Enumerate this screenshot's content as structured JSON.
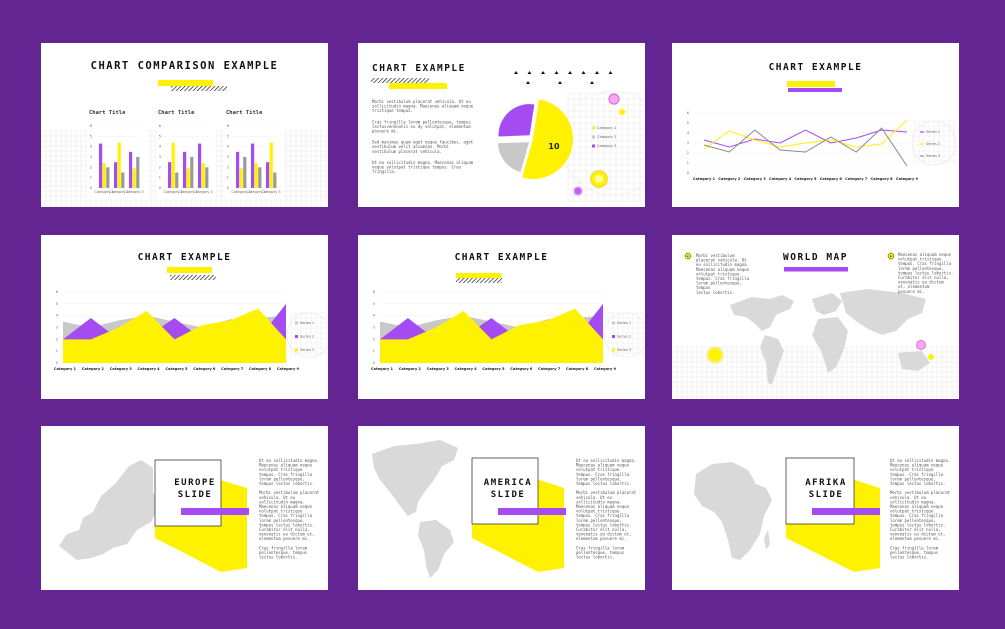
{
  "colors": {
    "background": "#632592",
    "yellow": "#FFF200",
    "purple": "#A44BF2",
    "gray": "#C8C8C8",
    "dark": "#1A1A1A"
  },
  "slides": {
    "s1": {
      "title": "CHART COMPARISON EXAMPLE",
      "chart_title": "Chart Title"
    },
    "s2": {
      "title": "CHART EXAMPLE",
      "para1": [
        "Morbi vestibulum placerat vehicula. Ut eu",
        "sollicitudin magna. Maecenas aliquam neque",
        "tristique tempus."
      ],
      "para2": [
        "Cras fringilla lorem pellentesque, tempus",
        "lectusvenenatis eu dy volutpat, elementum",
        "posuere mi."
      ],
      "para3": [
        "Sed maximus quam eget neque faucibus, eget",
        "vestibulum velit accumsan. Morbi",
        "vestibulum placerat vehicula."
      ],
      "para4": [
        "Ut eu sollicitudin magna. Maecenas aliquam",
        "neque volutpat tristique tempus. Cras",
        "fringilla."
      ],
      "pie_label": "10"
    },
    "s3": {
      "title": "CHART EXAMPLE"
    },
    "s4": {
      "title": "CHART EXAMPLE"
    },
    "s5": {
      "title": "CHART EXAMPLE"
    },
    "s6": {
      "title": "WORLD MAP",
      "left": [
        "Morbi vestibulum",
        "placerat vehicula. Ut",
        "eu sollicitudin magna.",
        "Maecenas aliquam neque",
        "volutpat tristique",
        "tempus. Cras fringilla",
        "lorem pellentesque,",
        "tempus",
        "lectus lobortis."
      ],
      "right": [
        "Maecenas aliquam neque",
        "volutpat tristique",
        "tempus. Cras fringilla",
        "lorem pellentesque,",
        "tempus lectus lobortis.",
        "Curabitur elit nulla,",
        "venenatis eu dictum",
        "ut, elementum",
        "posuere mi."
      ]
    },
    "s7": {
      "title_line1": "EUROPE",
      "title_line2": "SLIDE"
    },
    "s8": {
      "title_line1": "AMERICA",
      "title_line2": "SLIDE"
    },
    "s9": {
      "title_line1": "AFRIKA",
      "title_line2": "SLIDE"
    },
    "side_text": [
      "Ut eu sollicitudin magna.",
      "Maecenas aliquam neque",
      "volutpat tristique",
      "tempus. Cras fringilla",
      "lorem pellentesque,",
      "tempus lectus lobortis.",
      "",
      "Morbi vestibulum placerat",
      "vehicula. Ut eu",
      "sollicitudin magna.",
      "Maecenas aliquam neque",
      "volutpat tristique",
      "tempus. Cras fringilla",
      "lorem pellentesque,",
      "tempus lectus lobortis.",
      "Curabitur elit nulla,",
      "venenatis eu dictum ut,",
      "elementum posuere mi.",
      "",
      "Cras fringilla lorem",
      "pellentesque, tempus",
      "lectus lobortis."
    ]
  },
  "chart_data": [
    {
      "type": "bar",
      "title": "Chart Title",
      "categories": [
        "Category 1",
        "Category 2",
        "Category 3"
      ],
      "yticks": [
        "0",
        "1",
        "2",
        "3",
        "4",
        "5",
        "6"
      ],
      "series": [
        {
          "values": [
            4.3,
            2.5,
            3.5
          ]
        },
        {
          "values": [
            2.4,
            4.4,
            1.9
          ]
        },
        {
          "values": [
            2.0,
            1.5,
            3.0
          ]
        }
      ]
    },
    {
      "type": "pie",
      "label": "10",
      "values": [
        52,
        20,
        28
      ],
      "legend": [
        "Category 1",
        "Category 2",
        "Category 3"
      ]
    },
    {
      "type": "line",
      "categories": [
        "Category 1",
        "Category 2",
        "Category 3",
        "Category 4",
        "Category 5",
        "Category 6",
        "Category 7",
        "Category 8",
        "Category 9"
      ],
      "yticks": [
        "0",
        "1",
        "2",
        "3",
        "4",
        "5",
        "6"
      ],
      "series": [
        {
          "name": "Series 1",
          "values": [
            3.3,
            2.6,
            3.4,
            3.0,
            4.3,
            3.0,
            3.5,
            4.3,
            4.1
          ]
        },
        {
          "name": "Series 2",
          "values": [
            2.4,
            4.2,
            3.3,
            2.6,
            3.0,
            3.3,
            2.6,
            2.9,
            5.3
          ]
        },
        {
          "name": "Series 3",
          "values": [
            2.8,
            2.1,
            4.3,
            2.3,
            2.1,
            3.6,
            2.1,
            4.5,
            0.7
          ]
        }
      ],
      "legend": [
        "Series 1",
        "Series 2",
        "Series 3"
      ]
    },
    {
      "type": "area",
      "categories": [
        "Category 1",
        "Category 2",
        "Category 3",
        "Category 4",
        "Category 5",
        "Category 6",
        "Category 7",
        "Category 8",
        "Category 9"
      ],
      "yticks": [
        "0",
        "1",
        "2",
        "3",
        "4",
        "5",
        "6"
      ],
      "series": [
        {
          "name": "Series 1",
          "values": [
            3.5,
            3.0,
            3.6,
            4.0,
            3.5,
            3.0,
            3.7,
            3.8,
            4.0
          ]
        },
        {
          "name": "Series 2",
          "values": [
            2.0,
            3.8,
            2.0,
            2.2,
            3.8,
            2.0,
            2.4,
            2.0,
            5.0
          ]
        },
        {
          "name": "Series 3",
          "values": [
            2.0,
            2.0,
            3.0,
            4.4,
            2.0,
            3.2,
            3.6,
            4.6,
            2.0
          ]
        }
      ],
      "legend": [
        "Series 1",
        "Series 2",
        "Series 3"
      ]
    }
  ]
}
